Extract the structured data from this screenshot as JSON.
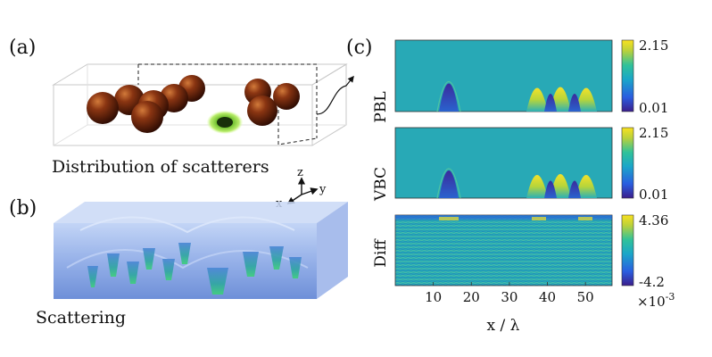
{
  "panels": {
    "a": {
      "label": "(a)",
      "caption": "Distribution of scatterers"
    },
    "b": {
      "label": "(b)",
      "caption": "Scattering"
    },
    "c": {
      "label": "(c)"
    }
  },
  "axes_triad": {
    "z": "z",
    "x": "x",
    "y": "y"
  },
  "maps": [
    {
      "name": "PBL",
      "cmax": "2.15",
      "cmin": "0.01"
    },
    {
      "name": "VBC",
      "cmax": "2.15",
      "cmin": "0.01"
    },
    {
      "name": "Diff",
      "cmax": "4.36",
      "cmin": "-4.2"
    }
  ],
  "x_axis": {
    "label": "x / λ",
    "ticks": [
      "10",
      "20",
      "30",
      "40",
      "50"
    ],
    "tick_values": [
      10,
      20,
      30,
      40,
      50
    ],
    "range": [
      0,
      57
    ]
  },
  "diff_scale": {
    "base": "×10",
    "exp": "-3"
  },
  "colors": {
    "sphere": "#5a1d0a",
    "cell": "#8fd14a",
    "background_field": "#2aa7b8",
    "volume": "#6f8fd9"
  }
}
